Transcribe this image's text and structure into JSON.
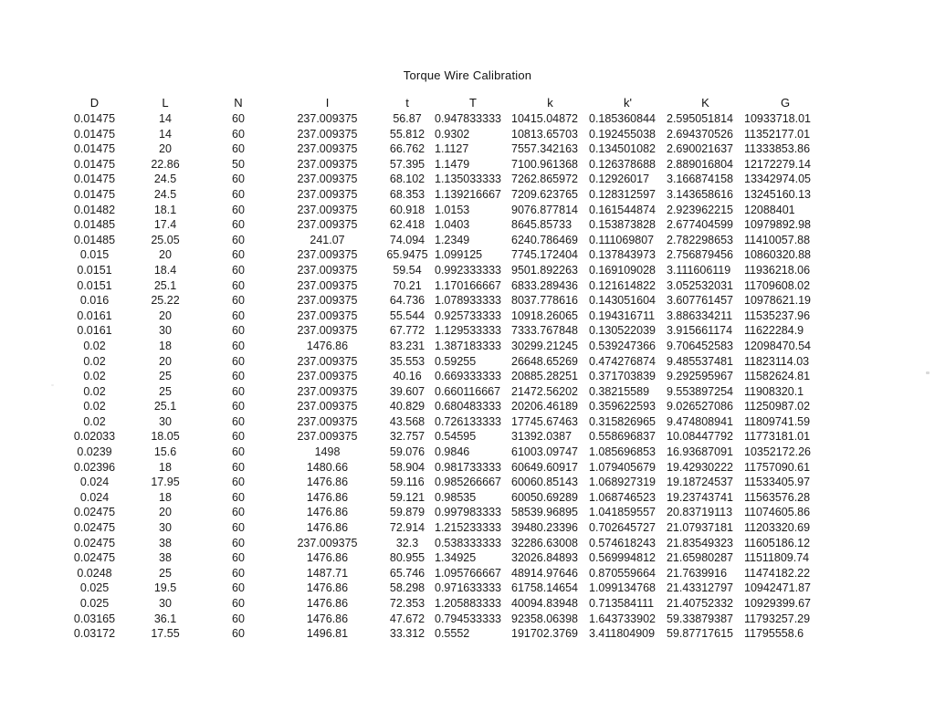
{
  "title": "Torque Wire Calibration",
  "table": {
    "columns": [
      "D",
      "L",
      "N",
      "I",
      "t",
      "T",
      "k",
      "k'",
      "K",
      "G"
    ],
    "rows": [
      [
        "0.01475",
        "14",
        "60",
        "237.009375",
        "56.87",
        "0.947833333",
        "10415.04872",
        "0.185360844",
        "2.595051814",
        "10933718.01"
      ],
      [
        "0.01475",
        "14",
        "60",
        "237.009375",
        "55.812",
        "0.9302",
        "10813.65703",
        "0.192455038",
        "2.694370526",
        "11352177.01"
      ],
      [
        "0.01475",
        "20",
        "60",
        "237.009375",
        "66.762",
        "1.1127",
        "7557.342163",
        "0.134501082",
        "2.690021637",
        "11333853.86"
      ],
      [
        "0.01475",
        "22.86",
        "50",
        "237.009375",
        "57.395",
        "1.1479",
        "7100.961368",
        "0.126378688",
        "2.889016804",
        "12172279.14"
      ],
      [
        "0.01475",
        "24.5",
        "60",
        "237.009375",
        "68.102",
        "1.135033333",
        "7262.865972",
        "0.12926017",
        "3.166874158",
        "13342974.05"
      ],
      [
        "0.01475",
        "24.5",
        "60",
        "237.009375",
        "68.353",
        "1.139216667",
        "7209.623765",
        "0.128312597",
        "3.143658616",
        "13245160.13"
      ],
      [
        "0.01482",
        "18.1",
        "60",
        "237.009375",
        "60.918",
        "1.0153",
        "9076.877814",
        "0.161544874",
        "2.923962215",
        "12088401"
      ],
      [
        "0.01485",
        "17.4",
        "60",
        "237.009375",
        "62.418",
        "1.0403",
        "8645.85733",
        "0.153873828",
        "2.677404599",
        "10979892.98"
      ],
      [
        "0.01485",
        "25.05",
        "60",
        "241.07",
        "74.094",
        "1.2349",
        "6240.786469",
        "0.111069807",
        "2.782298653",
        "11410057.88"
      ],
      [
        "0.015",
        "20",
        "60",
        "237.009375",
        "65.9475",
        "1.099125",
        "7745.172404",
        "0.137843973",
        "2.756879456",
        "10860320.88"
      ],
      [
        "0.0151",
        "18.4",
        "60",
        "237.009375",
        "59.54",
        "0.992333333",
        "9501.892263",
        "0.169109028",
        "3.111606119",
        "11936218.06"
      ],
      [
        "0.0151",
        "25.1",
        "60",
        "237.009375",
        "70.21",
        "1.170166667",
        "6833.289436",
        "0.121614822",
        "3.052532031",
        "11709608.02"
      ],
      [
        "0.016",
        "25.22",
        "60",
        "237.009375",
        "64.736",
        "1.078933333",
        "8037.778616",
        "0.143051604",
        "3.607761457",
        "10978621.19"
      ],
      [
        "0.0161",
        "20",
        "60",
        "237.009375",
        "55.544",
        "0.925733333",
        "10918.26065",
        "0.194316711",
        "3.886334211",
        "11535237.96"
      ],
      [
        "0.0161",
        "30",
        "60",
        "237.009375",
        "67.772",
        "1.129533333",
        "7333.767848",
        "0.130522039",
        "3.915661174",
        "11622284.9"
      ],
      [
        "0.02",
        "18",
        "60",
        "1476.86",
        "83.231",
        "1.387183333",
        "30299.21245",
        "0.539247366",
        "9.706452583",
        "12098470.54"
      ],
      [
        "0.02",
        "20",
        "60",
        "237.009375",
        "35.553",
        "0.59255",
        "26648.65269",
        "0.474276874",
        "9.485537481",
        "11823114.03"
      ],
      [
        "0.02",
        "25",
        "60",
        "237.009375",
        "40.16",
        "0.669333333",
        "20885.28251",
        "0.371703839",
        "9.292595967",
        "11582624.81"
      ],
      [
        "0.02",
        "25",
        "60",
        "237.009375",
        "39.607",
        "0.660116667",
        "21472.56202",
        "0.38215589",
        "9.553897254",
        "11908320.1"
      ],
      [
        "0.02",
        "25.1",
        "60",
        "237.009375",
        "40.829",
        "0.680483333",
        "20206.46189",
        "0.359622593",
        "9.026527086",
        "11250987.02"
      ],
      [
        "0.02",
        "30",
        "60",
        "237.009375",
        "43.568",
        "0.726133333",
        "17745.67463",
        "0.315826965",
        "9.474808941",
        "11809741.59"
      ],
      [
        "0.02033",
        "18.05",
        "60",
        "237.009375",
        "32.757",
        "0.54595",
        "31392.0387",
        "0.558696837",
        "10.08447792",
        "11773181.01"
      ],
      [
        "0.0239",
        "15.6",
        "60",
        "1498",
        "59.076",
        "0.9846",
        "61003.09747",
        "1.085696853",
        "16.93687091",
        "10352172.26"
      ],
      [
        "0.02396",
        "18",
        "60",
        "1480.66",
        "58.904",
        "0.981733333",
        "60649.60917",
        "1.079405679",
        "19.42930222",
        "11757090.61"
      ],
      [
        "0.024",
        "17.95",
        "60",
        "1476.86",
        "59.116",
        "0.985266667",
        "60060.85143",
        "1.068927319",
        "19.18724537",
        "11533405.97"
      ],
      [
        "0.024",
        "18",
        "60",
        "1476.86",
        "59.121",
        "0.98535",
        "60050.69289",
        "1.068746523",
        "19.23743741",
        "11563576.28"
      ],
      [
        "0.02475",
        "20",
        "60",
        "1476.86",
        "59.879",
        "0.997983333",
        "58539.96895",
        "1.041859557",
        "20.83719113",
        "11074605.86"
      ],
      [
        "0.02475",
        "30",
        "60",
        "1476.86",
        "72.914",
        "1.215233333",
        "39480.23396",
        "0.702645727",
        "21.07937181",
        "11203320.69"
      ],
      [
        "0.02475",
        "38",
        "60",
        "237.009375",
        "32.3",
        "0.538333333",
        "32286.63008",
        "0.574618243",
        "21.83549323",
        "11605186.12"
      ],
      [
        "0.02475",
        "38",
        "60",
        "1476.86",
        "80.955",
        "1.34925",
        "32026.84893",
        "0.569994812",
        "21.65980287",
        "11511809.74"
      ],
      [
        "0.0248",
        "25",
        "60",
        "1487.71",
        "65.746",
        "1.095766667",
        "48914.97646",
        "0.870559664",
        "21.7639916",
        "11474182.22"
      ],
      [
        "0.025",
        "19.5",
        "60",
        "1476.86",
        "58.298",
        "0.971633333",
        "61758.14654",
        "1.099134768",
        "21.43312797",
        "10942471.87"
      ],
      [
        "0.025",
        "30",
        "60",
        "1476.86",
        "72.353",
        "1.205883333",
        "40094.83948",
        "0.713584111",
        "21.40752332",
        "10929399.67"
      ],
      [
        "0.03165",
        "36.1",
        "60",
        "1476.86",
        "47.672",
        "0.794533333",
        "92358.06398",
        "1.643733902",
        "59.33879387",
        "11793257.29"
      ],
      [
        "0.03172",
        "17.55",
        "60",
        "1496.81",
        "33.312",
        "0.5552",
        "191702.3769",
        "3.411804909",
        "59.87717615",
        "11795558.6"
      ]
    ]
  }
}
